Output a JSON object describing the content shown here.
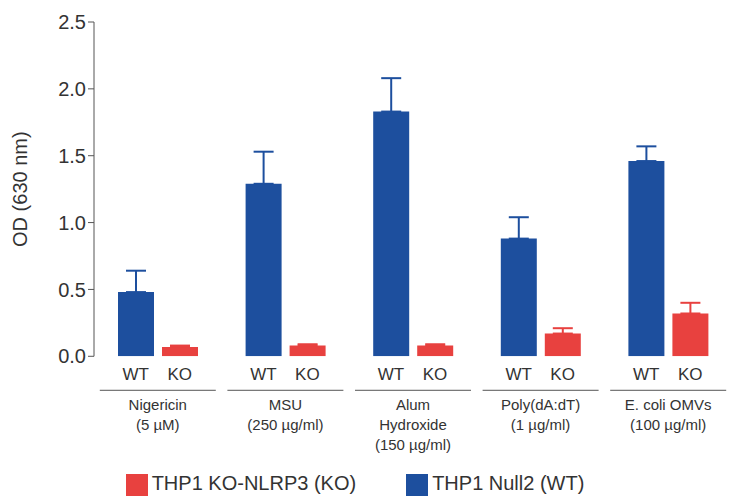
{
  "chart_data": {
    "type": "bar",
    "y_label": "OD (630 nm)",
    "categories": [
      "Nigericin\n(5 µM)",
      "MSU\n(250 µg/ml)",
      "Alum\nHydroxide\n(150 µg/ml)",
      "Poly(dA:dT)\n(1 µg/ml)",
      "E. coli OMVs\n(100 µg/ml)"
    ],
    "series": [
      {
        "name": "THP1 Null2 (WT)",
        "label": "WT",
        "color": "#1d4f9e",
        "values": [
          0.48,
          1.29,
          1.83,
          0.88,
          1.46
        ],
        "errors": [
          0.16,
          0.24,
          0.25,
          0.16,
          0.11
        ]
      },
      {
        "name": "THP1 KO-NLRP3 (KO)",
        "label": "KO",
        "color": "#e8413f",
        "values": [
          0.07,
          0.08,
          0.08,
          0.17,
          0.32
        ],
        "errors": [
          0.01,
          0.01,
          0.01,
          0.04,
          0.08
        ]
      }
    ],
    "ylim": [
      0,
      2.5
    ],
    "yticks": [
      {
        "value": 0,
        "label": "0.0"
      },
      0.5,
      {
        "value": 1,
        "label": "1.0"
      },
      1.5,
      {
        "value": 2,
        "label": "2.0"
      },
      2.5
    ],
    "grid": false,
    "legend": "bottom"
  }
}
